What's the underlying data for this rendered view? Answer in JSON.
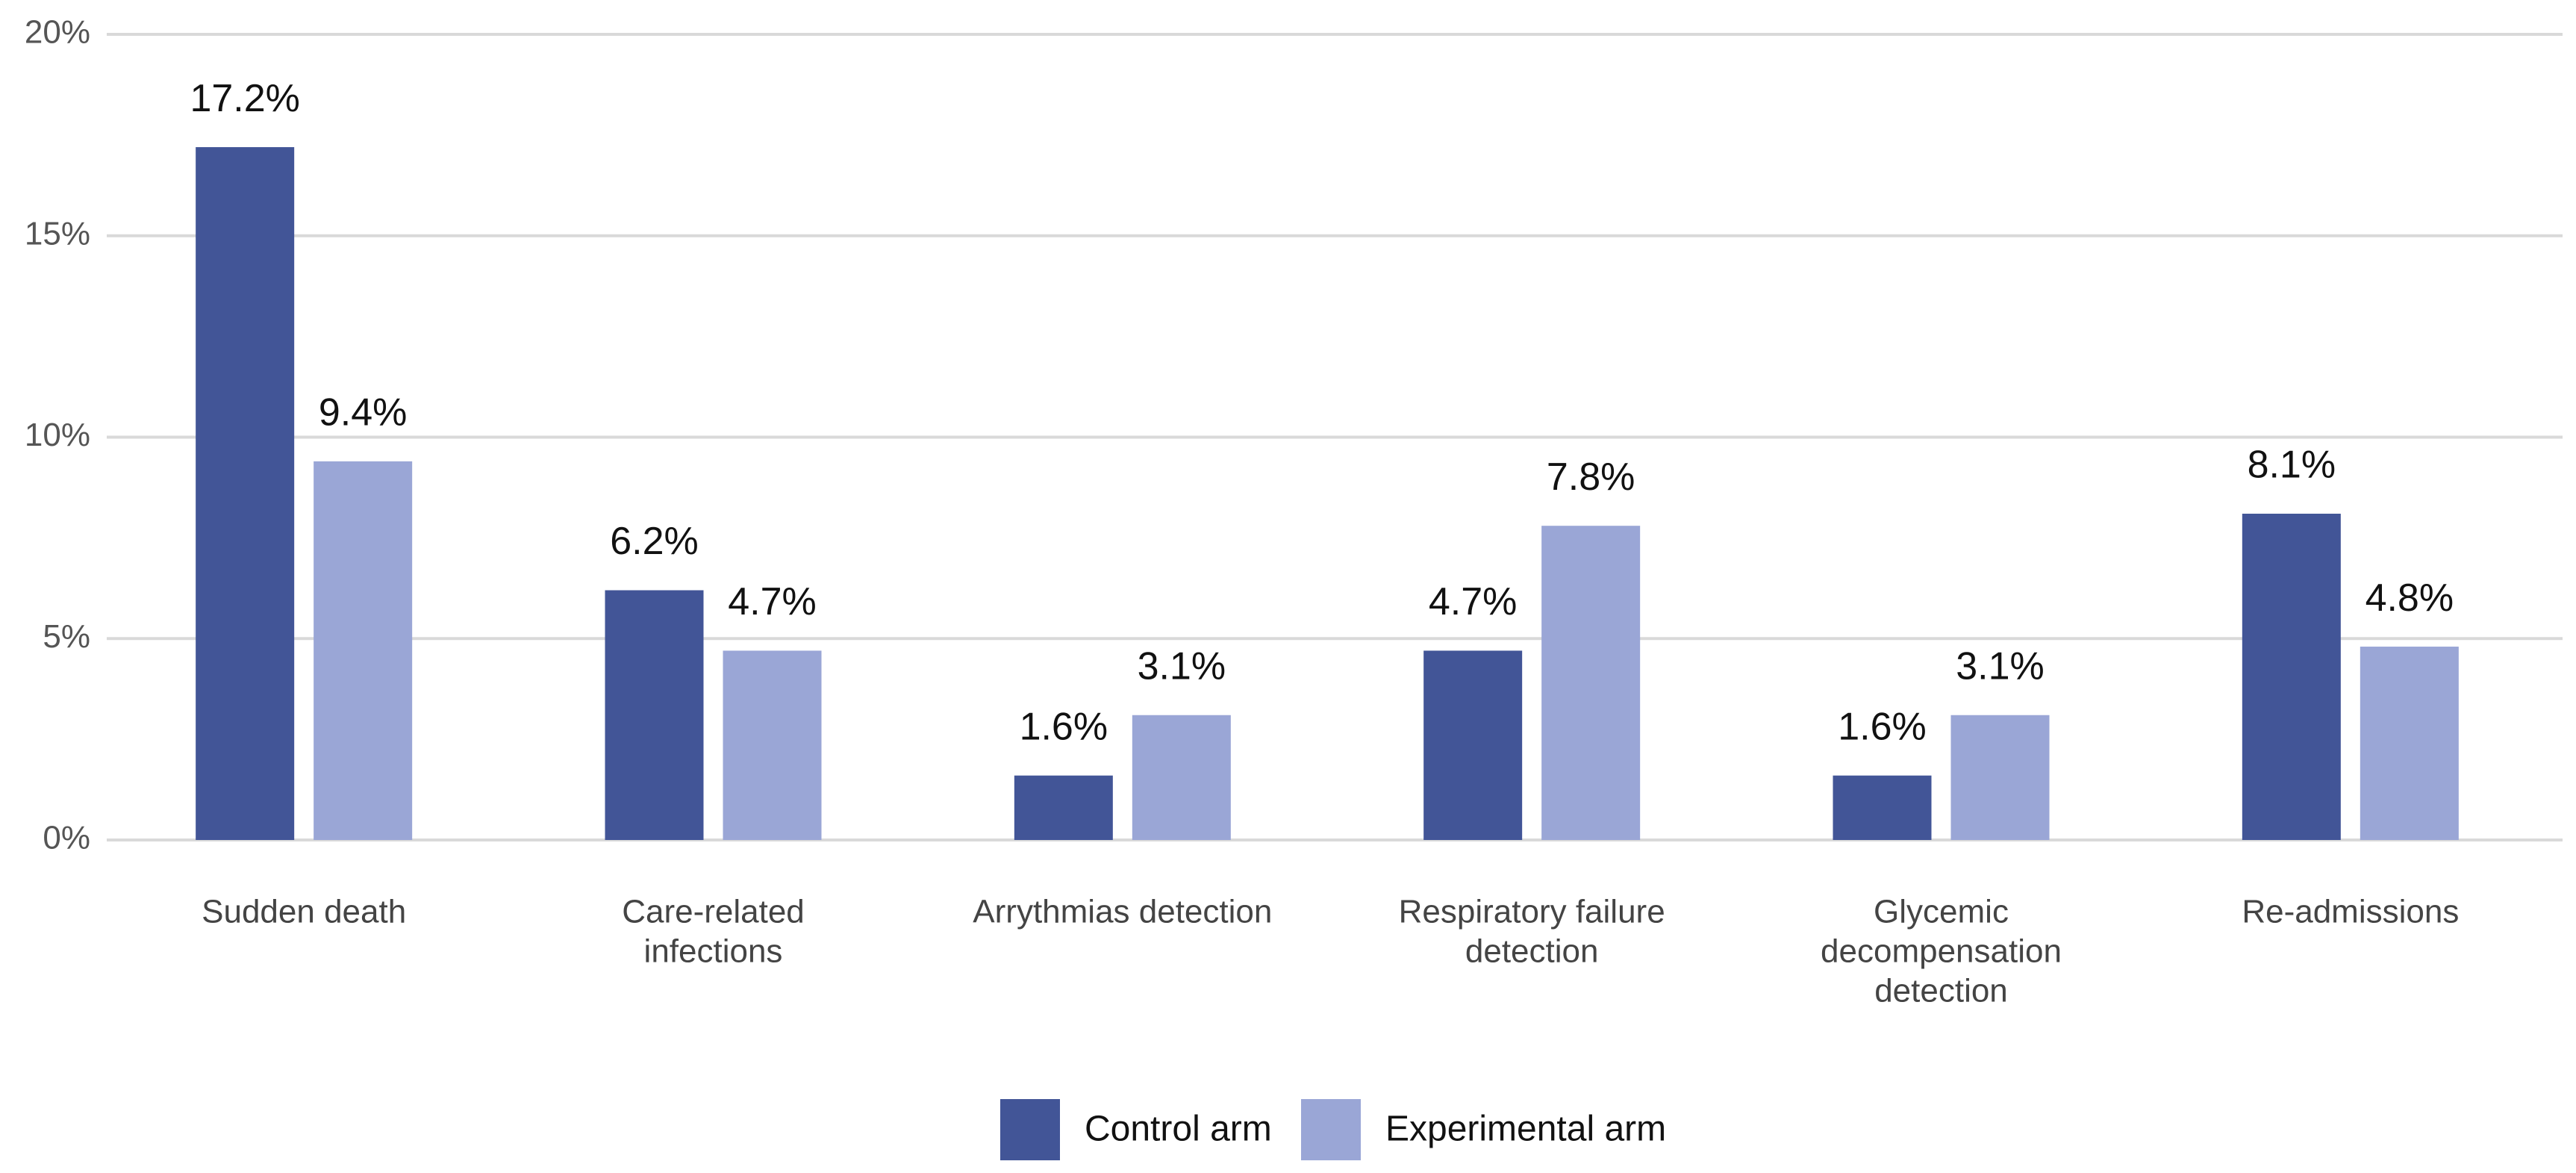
{
  "chart_data": {
    "type": "bar",
    "categories": [
      [
        "Sudden death"
      ],
      [
        "Care-related",
        "infections"
      ],
      [
        "Arrythmias detection"
      ],
      [
        "Respiratory failure",
        "detection"
      ],
      [
        "Glycemic",
        "decompensation",
        "detection"
      ],
      [
        "Re-admissions"
      ]
    ],
    "series": [
      {
        "name": "Control arm",
        "color": "#425597",
        "values": [
          17.2,
          6.2,
          1.6,
          4.7,
          1.6,
          8.1
        ],
        "value_labels": [
          "17.2%",
          "6.2%",
          "1.6%",
          "4.7%",
          "1.6%",
          "8.1%"
        ]
      },
      {
        "name": "Experimental arm",
        "color": "#9aa6d6",
        "values": [
          9.4,
          4.7,
          3.1,
          7.8,
          3.1,
          4.8
        ],
        "value_labels": [
          "9.4%",
          "4.7%",
          "3.1%",
          "7.8%",
          "3.1%",
          "4.8%"
        ]
      }
    ],
    "ylim": [
      0,
      20
    ],
    "yticks": [
      {
        "value": 0,
        "label": "0%"
      },
      {
        "value": 5,
        "label": "5%"
      },
      {
        "value": 10,
        "label": "10%"
      },
      {
        "value": 15,
        "label": "15%"
      },
      {
        "value": 20,
        "label": "20%"
      }
    ],
    "grid": true,
    "legend": "bottom"
  }
}
